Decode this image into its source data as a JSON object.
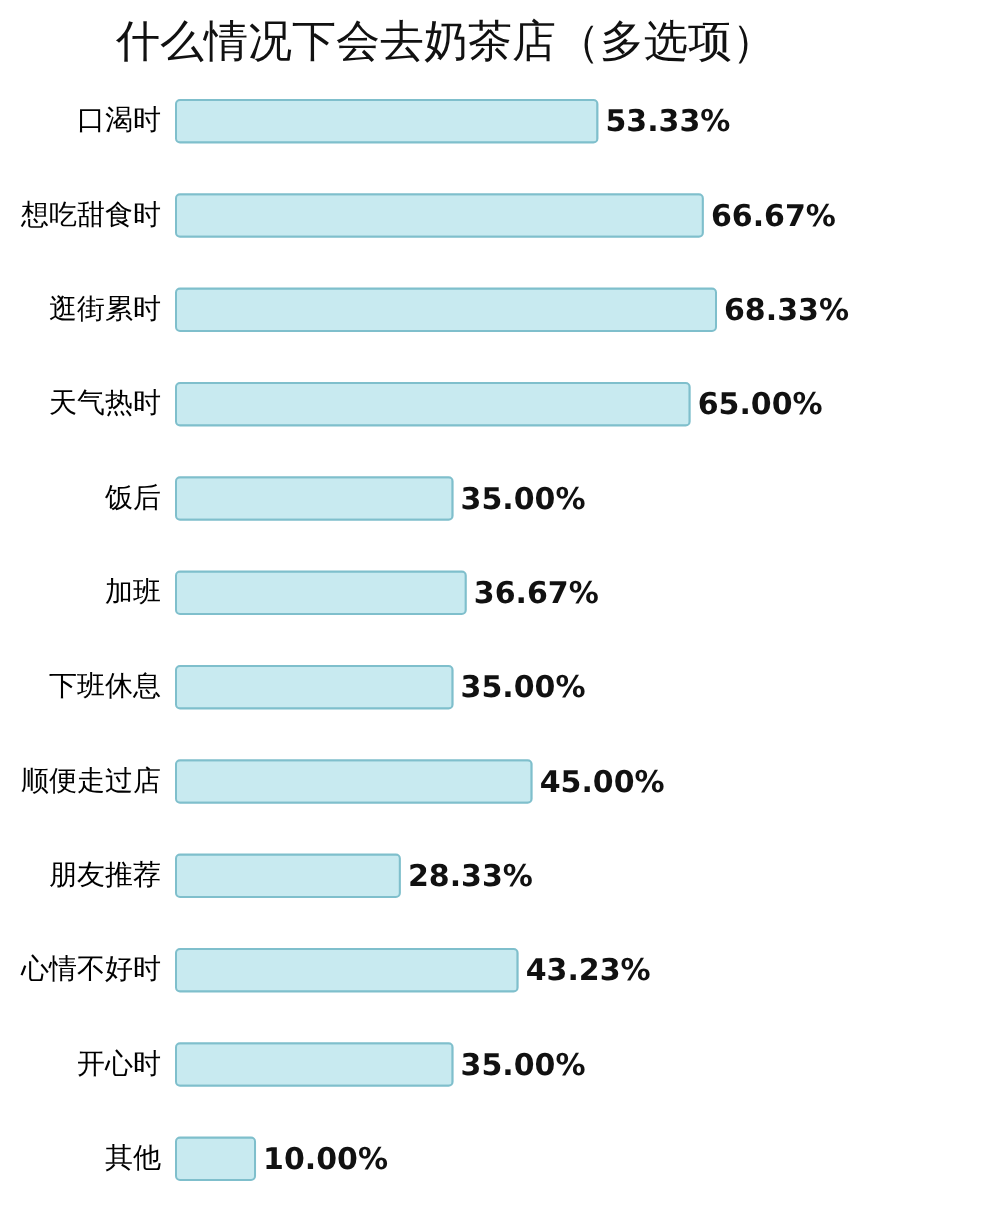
{
  "chart_data": {
    "type": "bar",
    "orientation": "horizontal",
    "title": "什么情况下会去奶茶店（多选项）",
    "categories": [
      "口渴时",
      "想吃甜食时",
      "逛街累时",
      "天气热时",
      "饭后",
      "加班",
      "下班休息",
      "顺便走过店",
      "朋友推荐",
      "心情不好时",
      "开心时",
      "其他"
    ],
    "values": [
      53.33,
      66.67,
      68.33,
      65.0,
      35.0,
      36.67,
      35.0,
      45.0,
      28.33,
      43.23,
      35.0,
      10.0
    ],
    "value_labels": [
      "53.33%",
      "66.67%",
      "68.33%",
      "65.00%",
      "35.00%",
      "36.67%",
      "35.00%",
      "45.00%",
      "28.33%",
      "43.23%",
      "35.00%",
      "10.00%"
    ],
    "color": "#c8eaf0",
    "grid": false
  }
}
